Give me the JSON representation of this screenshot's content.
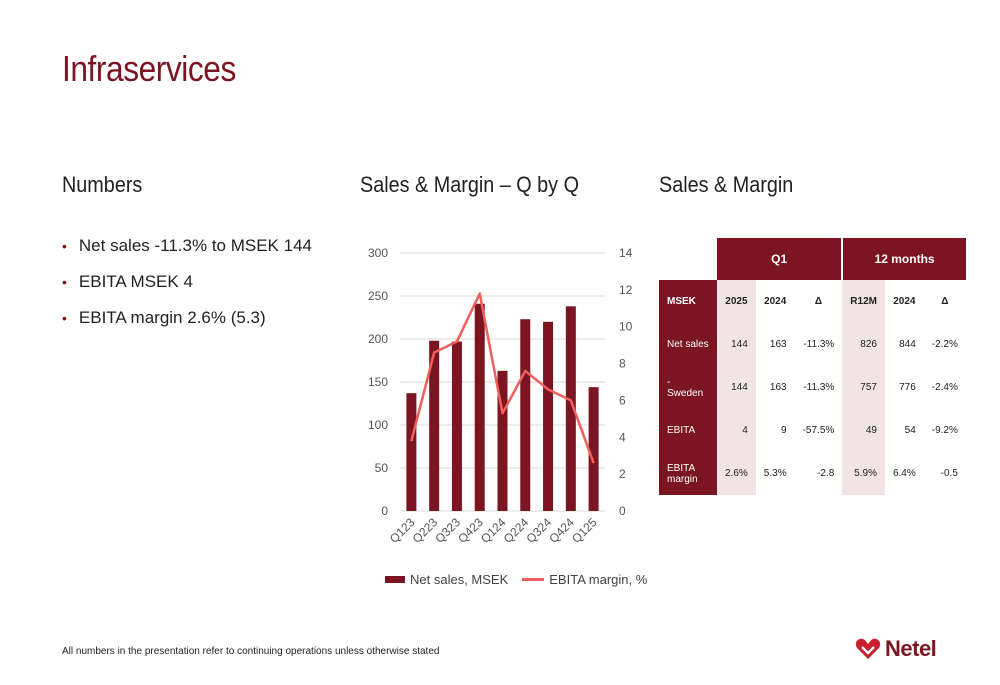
{
  "title": "Infraservices",
  "sections": {
    "numbers": "Numbers",
    "chart": "Sales & Margin – Q by Q",
    "table": "Sales & Margin"
  },
  "bullets": [
    "Net sales -11.3% to MSEK 144",
    "EBITA MSEK 4",
    "EBITA margin 2.6% (5.3)"
  ],
  "table": {
    "group_q1": "Q1",
    "group_12m": "12 months",
    "columns": [
      "MSEK",
      "2025",
      "2024",
      "Δ",
      "R12M",
      "2024",
      "Δ"
    ],
    "rows": [
      {
        "label": "Net sales",
        "q2025": "144",
        "q2024": "163",
        "qdelta": "-11.3%",
        "r12m": "826",
        "y2024": "844",
        "ydelta": "-2.2%"
      },
      {
        "label": "- Sweden",
        "q2025": "144",
        "q2024": "163",
        "qdelta": "-11.3%",
        "r12m": "757",
        "y2024": "776",
        "ydelta": "-2.4%"
      },
      {
        "label": "EBITA",
        "q2025": "4",
        "q2024": "9",
        "qdelta": "-57.5%",
        "r12m": "49",
        "y2024": "54",
        "ydelta": "-9.2%"
      },
      {
        "label": "EBITA margin",
        "q2025": "2.6%",
        "q2024": "5.3%",
        "qdelta": "-2.8",
        "r12m": "5.9%",
        "y2024": "6.4%",
        "ydelta": "-0.5"
      }
    ]
  },
  "footer": "All numbers in the presentation refer to continuing operations unless otherwise stated",
  "logo": "Netel",
  "colors": {
    "brand": "#7a1521",
    "line": "#f0605f",
    "pink": "#f2e4e4"
  },
  "chart_data": {
    "type": "bar",
    "categories": [
      "Q123",
      "Q223",
      "Q323",
      "Q423",
      "Q124",
      "Q224",
      "Q324",
      "Q424",
      "Q125"
    ],
    "series": [
      {
        "name": "Net sales, MSEK",
        "type": "bar",
        "axis": "left",
        "values": [
          137,
          198,
          197,
          241,
          163,
          223,
          220,
          238,
          144
        ]
      },
      {
        "name": "EBITA margin, %",
        "type": "line",
        "axis": "right",
        "values": [
          3.8,
          8.6,
          9.2,
          11.8,
          5.3,
          7.6,
          6.6,
          6.0,
          2.6
        ]
      }
    ],
    "y_left": {
      "min": 0,
      "max": 300,
      "ticks": [
        "0",
        "50",
        "100",
        "150",
        "200",
        "250",
        "300"
      ]
    },
    "y_right": {
      "min": 0,
      "max": 14,
      "ticks": [
        "0",
        "2",
        "4",
        "6",
        "8",
        "10",
        "12",
        "14"
      ]
    },
    "legend": "bottom",
    "grid": true
  }
}
